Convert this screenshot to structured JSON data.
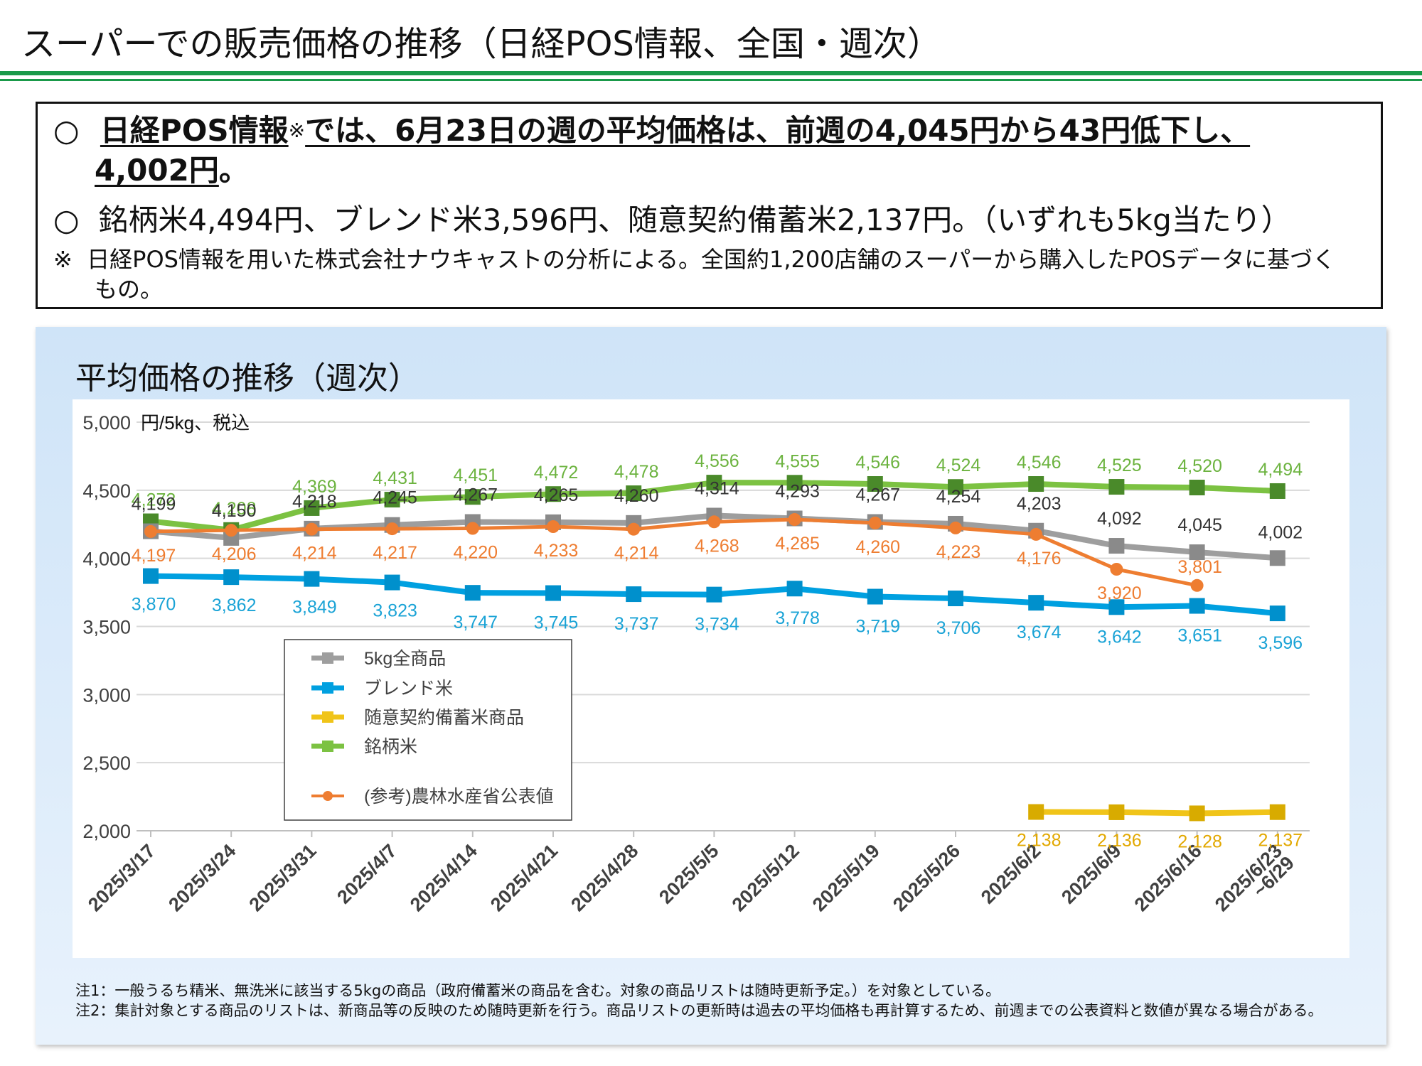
{
  "page": {
    "title": "スーパーでの販売価格の推移（日経POS情報、全国・週次）"
  },
  "summary": {
    "bullet1_mark": "○",
    "bullet1_underlined_source": "日経POS情報",
    "bullet1_asterisk": "※",
    "bullet1_text_a": "では、6月23日の週の平均価格は、前週の4,045円から43円低下し、",
    "bullet1_text_b": "4,002円",
    "bullet1_text_c": "。",
    "bullet2_mark": "○",
    "bullet2_text": "銘柄米4,494円、ブレンド米3,596円、随意契約備蓄米2,137円。（いずれも5kg当たり）",
    "note_mark": "※",
    "note_text_a": "日経POS情報を用いた株式会社ナウキャストの分析による。全国約1,200店舗のスーパーから購入したPOSデータに基づく",
    "note_text_b": "もの。"
  },
  "chart_panel": {
    "heading": "平均価格の推移（週次）",
    "footnote1": "注1：一般うるち精米、無洗米に該当する5kgの商品（政府備蓄米の商品を含む。対象の商品リストは随時更新予定。）を対象としている。",
    "footnote2": "注2：集計対象とする商品のリストは、新商品等の反映のため随時更新を行う。商品リストの更新時は過去の平均価格も再計算するため、前週までの公表資料と数値が異なる場合がある。"
  },
  "chart_data": {
    "type": "line",
    "ylabel": "円/5kg、税込",
    "ylim": [
      2000,
      5000
    ],
    "yticks": [
      2000,
      2500,
      3000,
      3500,
      4000,
      4500,
      5000
    ],
    "grid": true,
    "legend_position": "left-middle",
    "categories": [
      "2025/3/17",
      "2025/3/24",
      "2025/3/31",
      "2025/4/7",
      "2025/4/14",
      "2025/4/21",
      "2025/4/28",
      "2025/5/5",
      "2025/5/12",
      "2025/5/19",
      "2025/5/26",
      "2025/6/2",
      "2025/6/9",
      "2025/6/16",
      "2025/6/23\n~6/29"
    ],
    "series": [
      {
        "name": "5kg全商品",
        "color": "#9e9e9e",
        "label_color": "#333333",
        "marker": "square",
        "values": [
          4199,
          4150,
          4218,
          4245,
          4267,
          4265,
          4260,
          4314,
          4293,
          4267,
          4254,
          4203,
          4092,
          4045,
          4002
        ]
      },
      {
        "name": "ブレンド米",
        "color": "#00a0e0",
        "label_color": "#1aa3d6",
        "marker": "square",
        "values": [
          3870,
          3862,
          3849,
          3823,
          3747,
          3745,
          3737,
          3734,
          3778,
          3719,
          3706,
          3674,
          3642,
          3651,
          3596
        ]
      },
      {
        "name": "随意契約備蓄米商品",
        "color": "#f0c419",
        "label_color": "#e2a800",
        "marker": "square",
        "values": [
          null,
          null,
          null,
          null,
          null,
          null,
          null,
          null,
          null,
          null,
          null,
          2138,
          2136,
          2128,
          2137
        ]
      },
      {
        "name": "銘柄米",
        "color": "#7cc242",
        "label_color": "#6cb33f",
        "marker": "square",
        "values": [
          4272,
          4208,
          4369,
          4431,
          4451,
          4472,
          4478,
          4556,
          4555,
          4546,
          4524,
          4546,
          4525,
          4520,
          4494
        ]
      },
      {
        "name": "(参考)農林水産省公表値",
        "color": "#ee7d31",
        "label_color": "#ee7d31",
        "marker": "circle",
        "values": [
          4197,
          4206,
          4214,
          4217,
          4220,
          4233,
          4214,
          4268,
          4285,
          4260,
          4223,
          4176,
          3920,
          3801,
          null
        ]
      }
    ]
  }
}
